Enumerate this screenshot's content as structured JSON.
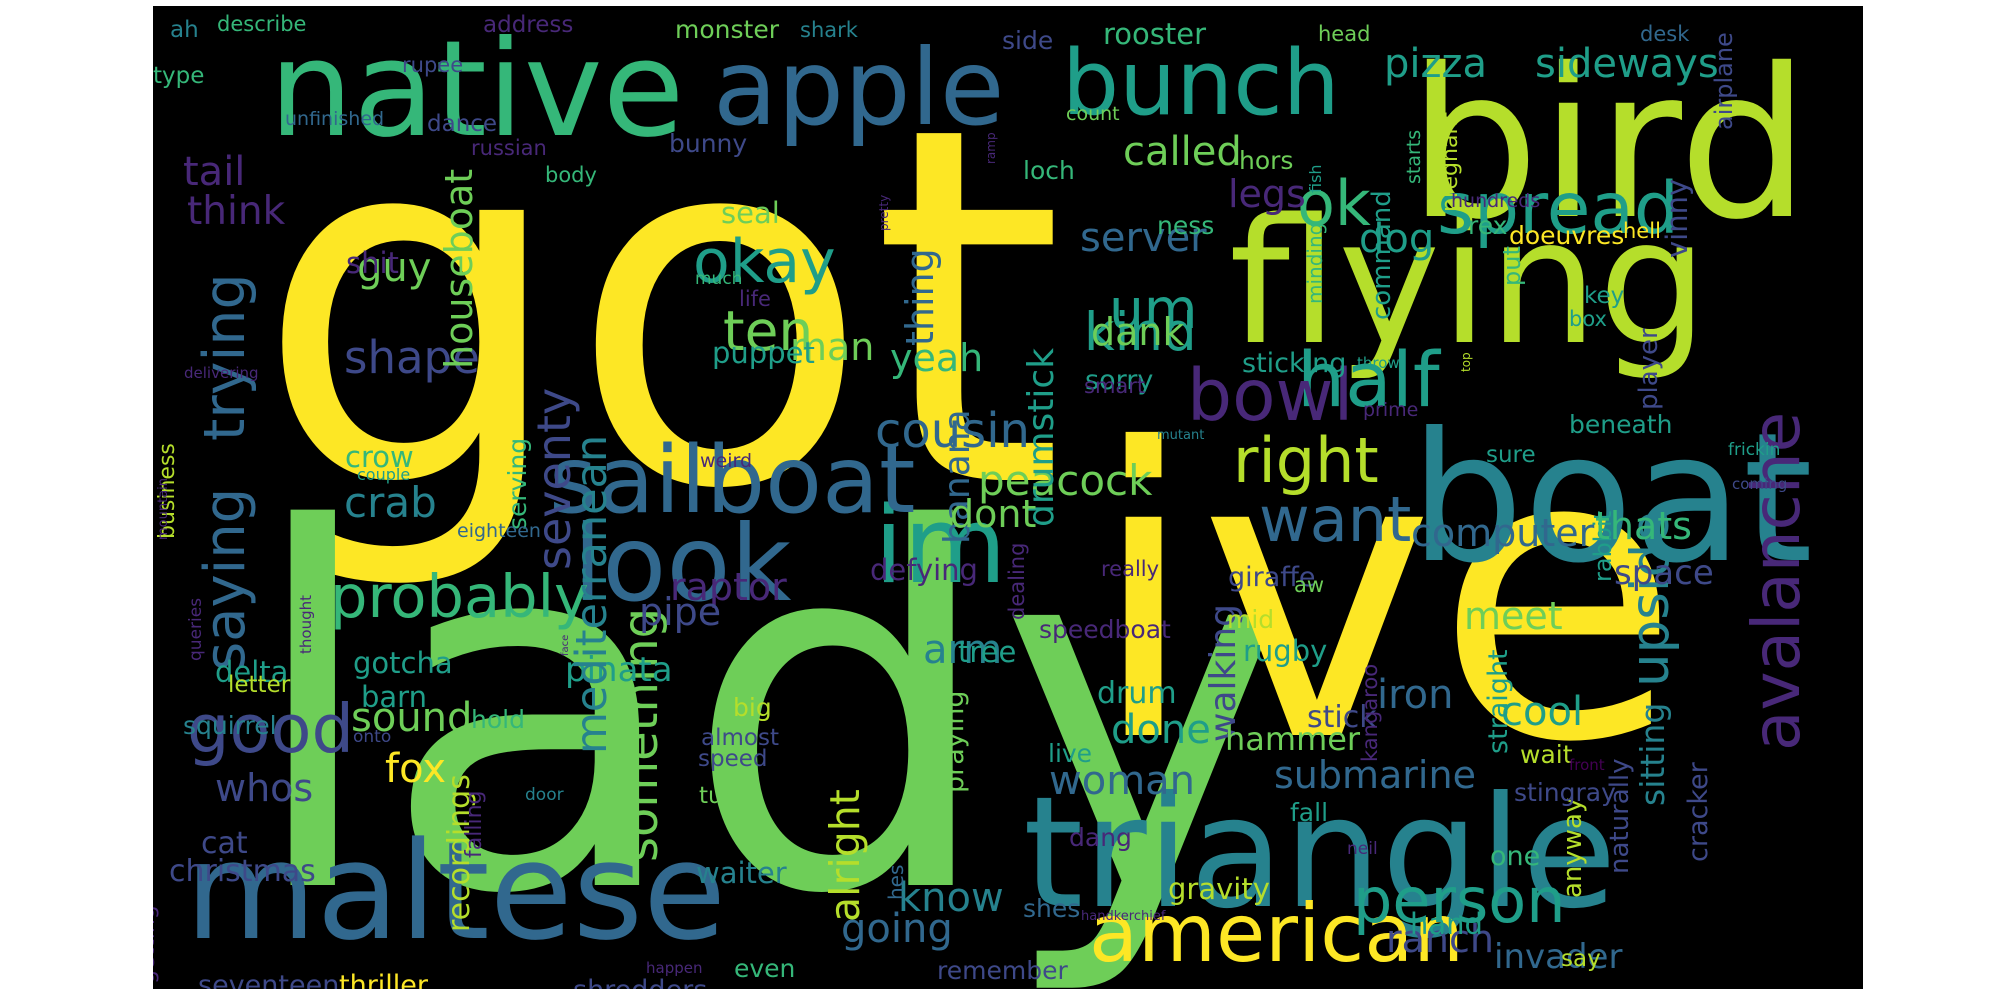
{
  "palette": {
    "background": "#000000",
    "yellow": "#fde725",
    "lime": "#b5de2b",
    "green": "#6ece58",
    "teal_green": "#35b779",
    "teal": "#1f9e89",
    "cyan_blue": "#26828e",
    "blue": "#31688e",
    "indigo": "#3e4989",
    "purple": "#482878",
    "dark_purple": "#440154"
  },
  "words": [
    {
      "text": "got",
      "color": "yellow"
    },
    {
      "text": "lady",
      "color": "green"
    },
    {
      "text": "ive",
      "color": "yellow"
    },
    {
      "text": "bird",
      "color": "lime"
    },
    {
      "text": "flying",
      "color": "lime"
    },
    {
      "text": "boat",
      "color": "cyan_blue"
    },
    {
      "text": "triangle",
      "color": "cyan_blue"
    },
    {
      "text": "maltese",
      "color": "blue"
    },
    {
      "text": "native",
      "color": "teal_green"
    },
    {
      "text": "apple",
      "color": "blue"
    },
    {
      "text": "bunch",
      "color": "teal"
    },
    {
      "text": "im",
      "color": "teal"
    },
    {
      "text": "sailboat",
      "color": "blue"
    },
    {
      "text": "look",
      "color": "blue"
    },
    {
      "text": "american",
      "color": "yellow"
    },
    {
      "text": "upside",
      "color": "cyan_blue"
    },
    {
      "text": "spread",
      "color": "teal"
    },
    {
      "text": "half",
      "color": "teal"
    },
    {
      "text": "bowl",
      "color": "purple"
    },
    {
      "text": "trying",
      "color": "blue"
    },
    {
      "text": "thing",
      "color": "blue"
    },
    {
      "text": "right",
      "color": "lime"
    },
    {
      "text": "want",
      "color": "blue"
    },
    {
      "text": "person",
      "color": "teal"
    },
    {
      "text": "good",
      "color": "indigo"
    },
    {
      "text": "saying",
      "color": "blue"
    },
    {
      "text": "probably",
      "color": "teal_green"
    },
    {
      "text": "ok",
      "color": "teal_green"
    },
    {
      "text": "um",
      "color": "teal"
    },
    {
      "text": "okay",
      "color": "teal"
    },
    {
      "text": "ten",
      "color": "green"
    },
    {
      "text": "pizza",
      "color": "teal"
    },
    {
      "text": "sideways",
      "color": "teal"
    },
    {
      "text": "kind",
      "color": "teal"
    },
    {
      "text": "seventy",
      "color": "indigo"
    },
    {
      "text": "cousin",
      "color": "blue"
    },
    {
      "text": "shape",
      "color": "indigo"
    },
    {
      "text": "peacock",
      "color": "green"
    },
    {
      "text": "computer",
      "color": "blue"
    },
    {
      "text": "submarine",
      "color": "blue"
    },
    {
      "text": "avalanche",
      "color": "purple"
    },
    {
      "text": "walking",
      "color": "indigo"
    },
    {
      "text": "sitting",
      "color": "cyan_blue"
    },
    {
      "text": "something",
      "color": "green"
    },
    {
      "text": "woman",
      "color": "blue"
    },
    {
      "text": "going",
      "color": "blue"
    },
    {
      "text": "know",
      "color": "cyan_blue"
    },
    {
      "text": "ranch",
      "color": "indigo"
    },
    {
      "text": "invader",
      "color": "blue"
    },
    {
      "text": "yeah",
      "color": "teal_green"
    },
    {
      "text": "man",
      "color": "green"
    },
    {
      "text": "tail",
      "color": "purple"
    },
    {
      "text": "think",
      "color": "purple"
    },
    {
      "text": "guy",
      "color": "green"
    },
    {
      "text": "called",
      "color": "green"
    },
    {
      "text": "legs",
      "color": "purple"
    },
    {
      "text": "server",
      "color": "blue"
    },
    {
      "text": "dog",
      "color": "teal"
    },
    {
      "text": "put",
      "color": "teal_green"
    },
    {
      "text": "vinny",
      "color": "indigo"
    },
    {
      "text": "dank",
      "color": "green"
    },
    {
      "text": "sorry",
      "color": "teal"
    },
    {
      "text": "drumstick",
      "color": "teal"
    },
    {
      "text": "banana",
      "color": "blue"
    },
    {
      "text": "houseboat",
      "color": "green"
    },
    {
      "text": "rabbit",
      "color": "teal"
    },
    {
      "text": "thats",
      "color": "teal_green"
    },
    {
      "text": "space",
      "color": "indigo"
    },
    {
      "text": "meet",
      "color": "green"
    },
    {
      "text": "raptor",
      "color": "purple"
    },
    {
      "text": "dont",
      "color": "green"
    },
    {
      "text": "pipe",
      "color": "indigo"
    },
    {
      "text": "pinata",
      "color": "teal"
    },
    {
      "text": "crab",
      "color": "cyan_blue"
    },
    {
      "text": "crow",
      "color": "teal_green"
    },
    {
      "text": "iron",
      "color": "blue"
    },
    {
      "text": "stick",
      "color": "indigo"
    },
    {
      "text": "done",
      "color": "teal"
    },
    {
      "text": "hammer",
      "color": "green"
    },
    {
      "text": "cool",
      "color": "teal"
    },
    {
      "text": "anyway",
      "color": "lime"
    },
    {
      "text": "sound",
      "color": "green"
    },
    {
      "text": "fox",
      "color": "yellow"
    },
    {
      "text": "whos",
      "color": "indigo"
    },
    {
      "text": "cat",
      "color": "indigo"
    },
    {
      "text": "christmas",
      "color": "indigo"
    },
    {
      "text": "alright",
      "color": "lime"
    },
    {
      "text": "hes",
      "color": "blue"
    },
    {
      "text": "arm",
      "color": "cyan_blue"
    },
    {
      "text": "drum",
      "color": "teal"
    },
    {
      "text": "gravity",
      "color": "lime"
    },
    {
      "text": "hand",
      "color": "teal"
    },
    {
      "text": "shit",
      "color": "purple"
    },
    {
      "text": "seal",
      "color": "green"
    },
    {
      "text": "puppet",
      "color": "teal"
    },
    {
      "text": "mediterranean",
      "color": "cyan_blue"
    },
    {
      "text": "serving",
      "color": "teal_green"
    },
    {
      "text": "business",
      "color": "lime"
    },
    {
      "text": "gotcha",
      "color": "teal"
    },
    {
      "text": "barn",
      "color": "teal"
    },
    {
      "text": "delta",
      "color": "teal"
    },
    {
      "text": "squirrel",
      "color": "cyan_blue"
    },
    {
      "text": "thriller",
      "color": "yellow"
    },
    {
      "text": "seventeen",
      "color": "indigo"
    },
    {
      "text": "shredders",
      "color": "indigo"
    },
    {
      "text": "recordings",
      "color": "lime"
    },
    {
      "text": "getting",
      "color": "purple"
    },
    {
      "text": "waiter",
      "color": "cyan_blue"
    },
    {
      "text": "falling",
      "color": "purple"
    },
    {
      "text": "straight",
      "color": "teal"
    },
    {
      "text": "rugby",
      "color": "teal"
    },
    {
      "text": "giraffe",
      "color": "indigo"
    },
    {
      "text": "speedboat",
      "color": "purple"
    },
    {
      "text": "tree",
      "color": "teal"
    },
    {
      "text": "praying",
      "color": "green"
    },
    {
      "text": "defying",
      "color": "purple"
    },
    {
      "text": "dealing",
      "color": "purple"
    },
    {
      "text": "minding",
      "color": "teal_green"
    },
    {
      "text": "command",
      "color": "teal"
    },
    {
      "text": "doeuvres",
      "color": "yellow"
    },
    {
      "text": "hors",
      "color": "green"
    },
    {
      "text": "ness",
      "color": "teal_green"
    },
    {
      "text": "loch",
      "color": "teal_green"
    },
    {
      "text": "rex",
      "color": "teal_green"
    },
    {
      "text": "fish",
      "color": "teal"
    },
    {
      "text": "player",
      "color": "indigo"
    },
    {
      "text": "beneath",
      "color": "teal"
    },
    {
      "text": "stingray",
      "color": "indigo"
    },
    {
      "text": "cracker",
      "color": "indigo"
    },
    {
      "text": "naturally",
      "color": "indigo"
    },
    {
      "text": "say",
      "color": "lime"
    },
    {
      "text": "one",
      "color": "teal_green"
    },
    {
      "text": "shes",
      "color": "blue"
    },
    {
      "text": "dang",
      "color": "purple"
    },
    {
      "text": "remember",
      "color": "indigo"
    },
    {
      "text": "even",
      "color": "teal_green"
    },
    {
      "text": "live",
      "color": "teal"
    },
    {
      "text": "fall",
      "color": "teal"
    },
    {
      "text": "wait",
      "color": "lime"
    },
    {
      "text": "mid",
      "color": "lime"
    },
    {
      "text": "big",
      "color": "lime"
    },
    {
      "text": "hold",
      "color": "teal_green"
    },
    {
      "text": "letter",
      "color": "lime"
    },
    {
      "text": "sticking",
      "color": "teal"
    },
    {
      "text": "dance",
      "color": "indigo"
    },
    {
      "text": "bunny",
      "color": "indigo"
    },
    {
      "text": "side",
      "color": "indigo"
    },
    {
      "text": "rooster",
      "color": "teal_green"
    },
    {
      "text": "monster",
      "color": "green"
    },
    {
      "text": "address",
      "color": "purple"
    },
    {
      "text": "shark",
      "color": "cyan_blue"
    },
    {
      "text": "head",
      "color": "green"
    },
    {
      "text": "desk",
      "color": "blue"
    },
    {
      "text": "airplane",
      "color": "indigo"
    },
    {
      "text": "describe",
      "color": "teal_green"
    },
    {
      "text": "ah",
      "color": "cyan_blue"
    },
    {
      "text": "type",
      "color": "teal_green"
    },
    {
      "text": "rupee",
      "color": "indigo"
    },
    {
      "text": "unfinished",
      "color": "blue"
    },
    {
      "text": "russian",
      "color": "purple"
    },
    {
      "text": "body",
      "color": "teal_green"
    },
    {
      "text": "ramp",
      "color": "purple"
    },
    {
      "text": "count",
      "color": "green"
    },
    {
      "text": "starts",
      "color": "teal_green"
    },
    {
      "text": "pregnant",
      "color": "lime"
    },
    {
      "text": "hundreds",
      "color": "purple"
    },
    {
      "text": "hell",
      "color": "yellow"
    },
    {
      "text": "key",
      "color": "teal"
    },
    {
      "text": "box",
      "color": "teal"
    },
    {
      "text": "top",
      "color": "lime"
    },
    {
      "text": "throw",
      "color": "teal"
    },
    {
      "text": "smart",
      "color": "purple"
    },
    {
      "text": "prime",
      "color": "purple"
    },
    {
      "text": "mutant",
      "color": "cyan_blue"
    },
    {
      "text": "sure",
      "color": "teal"
    },
    {
      "text": "frickin",
      "color": "teal"
    },
    {
      "text": "coming",
      "color": "indigo"
    },
    {
      "text": "really",
      "color": "purple"
    },
    {
      "text": "aw",
      "color": "green"
    },
    {
      "text": "kangaroo",
      "color": "purple"
    },
    {
      "text": "front",
      "color": "dark_purple"
    },
    {
      "text": "neil",
      "color": "purple"
    },
    {
      "text": "handkerchief",
      "color": "purple"
    },
    {
      "text": "happen",
      "color": "purple"
    },
    {
      "text": "speed",
      "color": "indigo"
    },
    {
      "text": "almost",
      "color": "indigo"
    },
    {
      "text": "turns",
      "color": "green"
    },
    {
      "text": "door",
      "color": "cyan_blue"
    },
    {
      "text": "onto",
      "color": "indigo"
    },
    {
      "text": "couple",
      "color": "teal"
    },
    {
      "text": "weird",
      "color": "purple"
    },
    {
      "text": "life",
      "color": "purple"
    },
    {
      "text": "much",
      "color": "teal_green"
    },
    {
      "text": "pretty",
      "color": "purple"
    },
    {
      "text": "eighteen",
      "color": "blue"
    },
    {
      "text": "thought",
      "color": "purple"
    },
    {
      "text": "queries",
      "color": "purple"
    },
    {
      "text": "face",
      "color": "purple"
    },
    {
      "text": "mountain",
      "color": "purple"
    },
    {
      "text": "delivering",
      "color": "purple"
    },
    {
      "text": "-",
      "color": "lime"
    },
    {
      "text": "-",
      "color": "yellow"
    },
    {
      "text": "-",
      "color": "lime"
    }
  ]
}
